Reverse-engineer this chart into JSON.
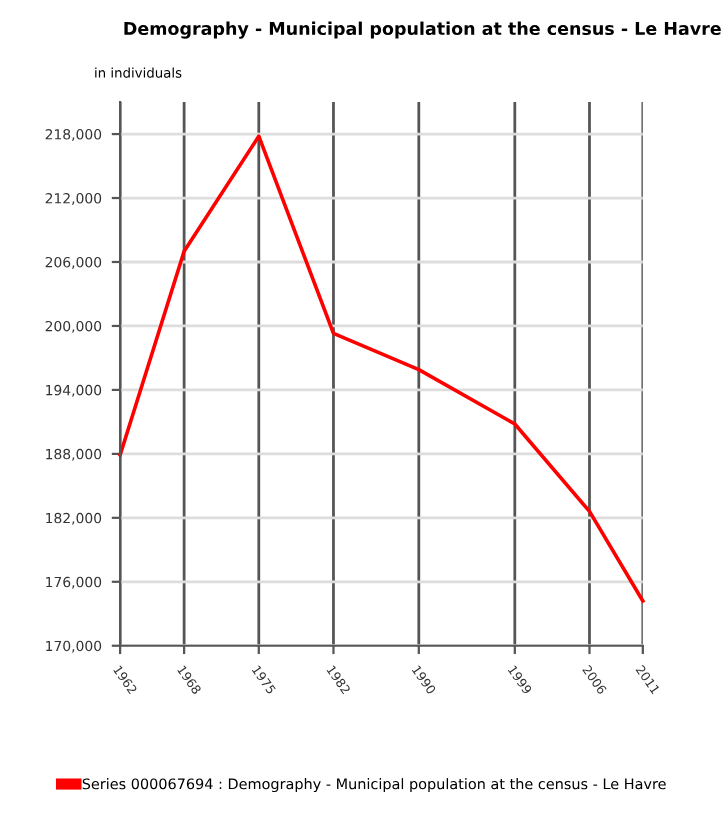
{
  "chart_data": {
    "type": "line",
    "title": "Demography - Municipal population at the census - Le Havre",
    "ylabel": "in individuals",
    "x": [
      1962,
      1968,
      1975,
      1982,
      1990,
      1999,
      2006,
      2011
    ],
    "series": [
      {
        "name": "Series 000067694 : Demography - Municipal population at the census - Le Havre",
        "color": "#ff0000",
        "values": [
          187900,
          207000,
          217800,
          199300,
          195900,
          190800,
          182600,
          174200
        ]
      }
    ],
    "xlim": [
      1962,
      2011
    ],
    "xticks": [
      1962,
      1968,
      1975,
      1982,
      1990,
      1999,
      2006,
      2011
    ],
    "ylim": [
      170000,
      221000
    ],
    "yticks": [
      {
        "value": 170000,
        "label": "170,000"
      },
      {
        "value": 176000,
        "label": "176,000"
      },
      {
        "value": 182000,
        "label": "182,000"
      },
      {
        "value": 188000,
        "label": "188,000"
      },
      {
        "value": 194000,
        "label": "194,000"
      },
      {
        "value": 200000,
        "label": "200,000"
      },
      {
        "value": 206000,
        "label": "206,000"
      },
      {
        "value": 212000,
        "label": "212,000"
      },
      {
        "value": 218000,
        "label": "218,000"
      }
    ],
    "grid": true,
    "legend": "bottom",
    "marker": "none",
    "line_style": "solid"
  }
}
